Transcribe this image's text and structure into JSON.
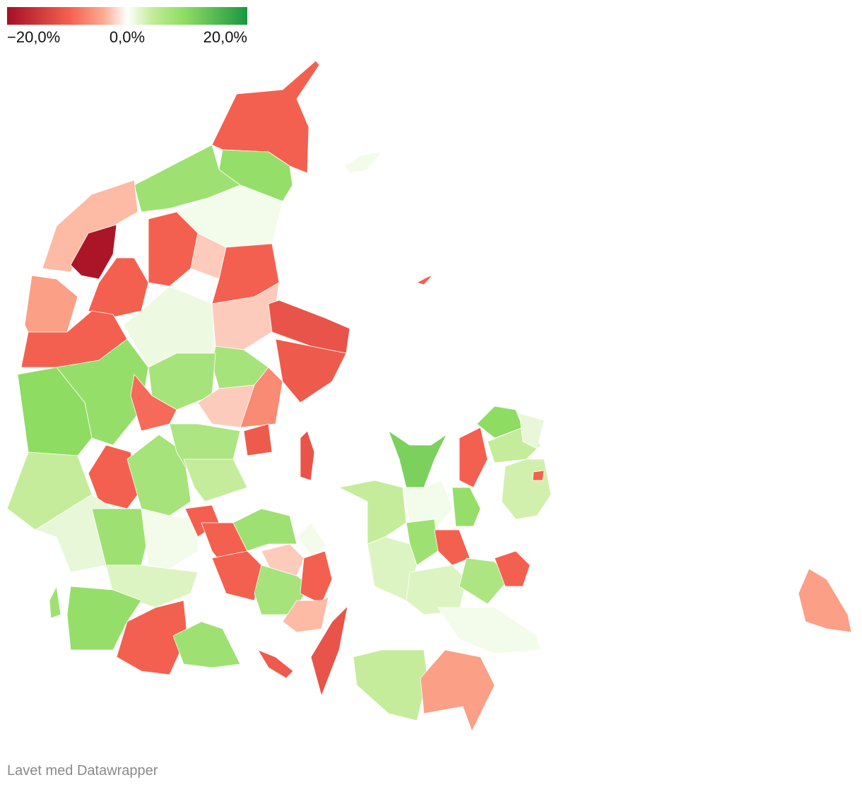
{
  "chart_data": {
    "type": "choropleth",
    "legend": {
      "lim": [
        -25,
        25
      ],
      "ticks": [
        {
          "value": -20,
          "label": "−20,0%"
        },
        {
          "value": 0,
          "label": "0,0%"
        },
        {
          "value": 20,
          "label": "20,0%"
        }
      ]
    },
    "colorscale": {
      "domain": [
        -25,
        -12,
        -5,
        0,
        5,
        12,
        25
      ],
      "colors": [
        "#a50f25",
        "#f4604f",
        "#fca98f",
        "#ffffff",
        "#c5ec9a",
        "#8edc62",
        "#1a9641"
      ]
    },
    "values": [
      -12,
      11,
      10,
      -4,
      -24,
      1,
      -12,
      -3,
      -12,
      -12,
      -6,
      -12,
      1.5,
      -3,
      -14,
      -13,
      9,
      9,
      11,
      12,
      -11,
      -8,
      -3,
      -13,
      5,
      -12,
      9,
      8,
      5,
      2,
      10,
      1,
      -12,
      3,
      11,
      -12,
      10,
      -12,
      10,
      -12,
      -3,
      9,
      1,
      -12,
      -4,
      -14,
      -13,
      14,
      5,
      1,
      10,
      3,
      -12,
      3,
      8,
      -12,
      11,
      -12,
      12,
      5,
      2,
      4,
      -12,
      1,
      5,
      -6,
      -6,
      1,
      -12,
      -14,
      10
    ],
    "source": "Lavet med Datawrapper"
  }
}
